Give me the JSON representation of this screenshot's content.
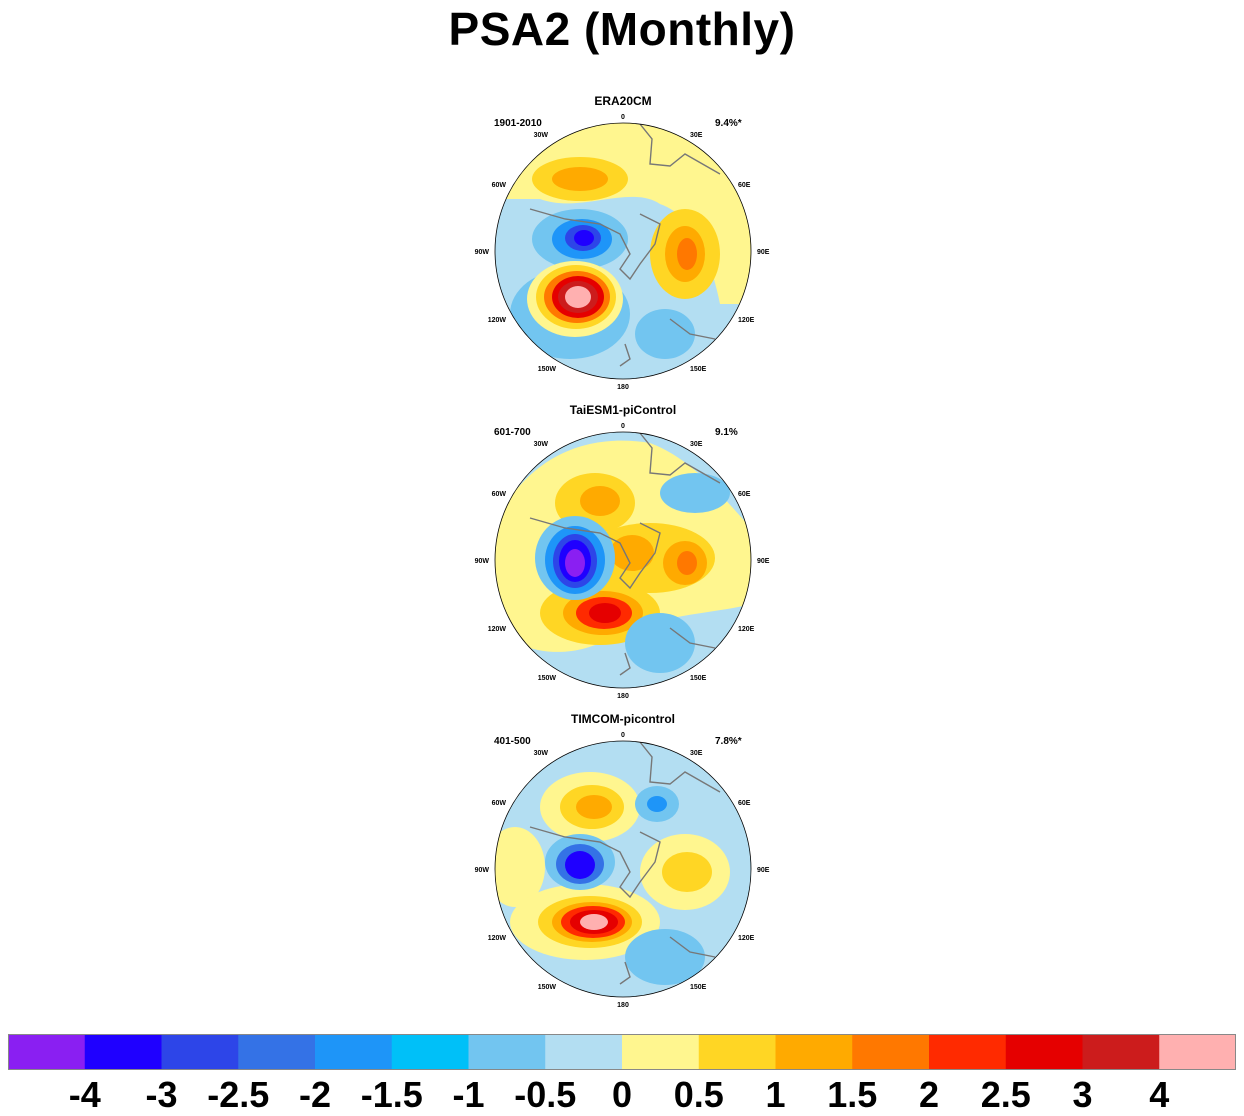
{
  "title": "PSA2 (Monthly)",
  "map_labels": {
    "top": "0",
    "bottom": "180",
    "left_top": "30W",
    "right_top": "30E",
    "left_upper": "60W",
    "right_upper": "60E",
    "left_mid": "90W",
    "right_mid": "90E",
    "left_lower": "120W",
    "right_lower": "120E",
    "left_bottom": "150W",
    "right_bottom": "150E"
  },
  "panels": [
    {
      "name": "ERA20CM",
      "period": "1901-2010",
      "pct": "9.4%*"
    },
    {
      "name": "TaiESM1-piControl",
      "period": "601-700",
      "pct": "9.1%"
    },
    {
      "name": "TIMCOM-picontrol",
      "period": "401-500",
      "pct": "7.8%*"
    }
  ],
  "colorbar": {
    "colors": [
      "#8a1ff2",
      "#1f00ff",
      "#2d45e8",
      "#3472e6",
      "#1e95f8",
      "#00c0f8",
      "#72c5f0",
      "#b3def2",
      "#fff68f",
      "#ffd624",
      "#ffaa00",
      "#ff7800",
      "#ff2a00",
      "#e50000",
      "#cc1c1c",
      "#ffb0b0"
    ],
    "ticks": [
      "-4",
      "-3",
      "-2.5",
      "-2",
      "-1.5",
      "-1",
      "-0.5",
      "0",
      "0.5",
      "1",
      "1.5",
      "2",
      "2.5",
      "3",
      "4"
    ]
  }
}
